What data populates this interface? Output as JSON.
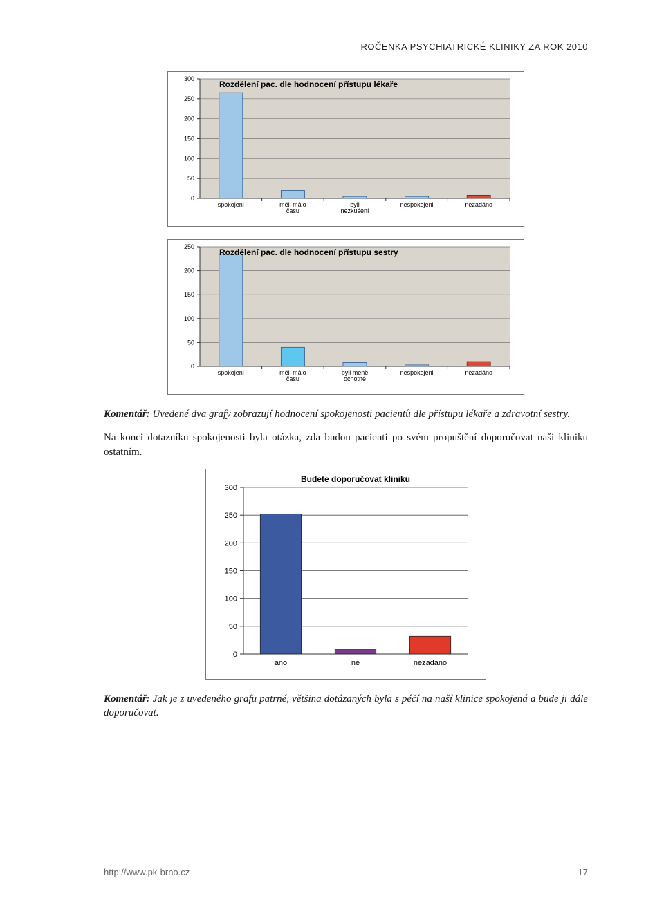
{
  "header": "ROČENKA PSYCHIATRICKÉ KLINIKY ZA ROK 2010",
  "chart1": {
    "type": "bar",
    "title": "Rozdělení pac. dle hodnocení přístupu lékaře",
    "title_fontsize": 12,
    "title_weight": "bold",
    "categories": [
      "spokojeni",
      "měli málo času",
      "byli nezkušení",
      "nespokojeni",
      "nezadáno"
    ],
    "values": [
      265,
      20,
      5,
      5,
      8
    ],
    "bar_fill": "#9fc7e8",
    "bar_stroke": "#2b5a8a",
    "last_fill": "#d94a3a",
    "last_stroke": "#7a1e14",
    "ymax": 300,
    "ytick_step": 50,
    "plot_bg": "#d9d4cc",
    "grid_color": "#777777",
    "axis_color": "#333333",
    "tick_fontsize": 9,
    "label_fontsize": 9
  },
  "chart2": {
    "type": "bar",
    "title": "Rozdělení pac. dle hodnocení přístupu sestry",
    "title_fontsize": 12,
    "title_weight": "bold",
    "categories": [
      "spokojeni",
      "měli málo času",
      "byli méně ochotné",
      "nespokojeni",
      "nezadáno"
    ],
    "values": [
      235,
      40,
      8,
      3,
      10
    ],
    "bar_fill": "#9fc7e8",
    "bar_stroke": "#2b5a8a",
    "mid_fill": "#5fc6ef",
    "last_fill": "#d94a3a",
    "last_stroke": "#7a1e14",
    "ymax": 250,
    "ytick_step": 50,
    "plot_bg": "#d9d4cc",
    "grid_color": "#777777",
    "axis_color": "#333333",
    "tick_fontsize": 9,
    "label_fontsize": 9
  },
  "para1": {
    "label": "Komentář:",
    "text": " Uvedené dva grafy zobrazují hodnocení spokojenosti pacientů dle přístupu lékaře a zdravotní sestry."
  },
  "para2": {
    "text": "Na konci dotazníku spokojenosti byla otázka, zda budou pacienti po svém propuštění doporučovat naši kliniku ostatním."
  },
  "chart3": {
    "type": "bar",
    "title": "Budete doporučovat kliniku",
    "title_fontsize": 12,
    "title_weight": "bold",
    "categories": [
      "ano",
      "ne",
      "nezadáno"
    ],
    "values": [
      252,
      8,
      32
    ],
    "bar_colors": [
      "#3b5aa0",
      "#7a3b8f",
      "#e23a2a"
    ],
    "bar_strokes": [
      "#222",
      "#222",
      "#222"
    ],
    "ymax": 300,
    "ytick_step": 50,
    "plot_bg": "#ffffff",
    "grid_color": "#555555",
    "axis_color": "#333333",
    "tick_fontsize": 11,
    "label_fontsize": 11
  },
  "para3": {
    "label": "Komentář:",
    "text": " Jak je z uvedeného grafu patrné, většina dotázaných byla s péčí na naší klinice spokojená a bude ji dále doporučovat."
  },
  "footer": {
    "url": "http://www.pk-brno.cz",
    "page": "17"
  }
}
